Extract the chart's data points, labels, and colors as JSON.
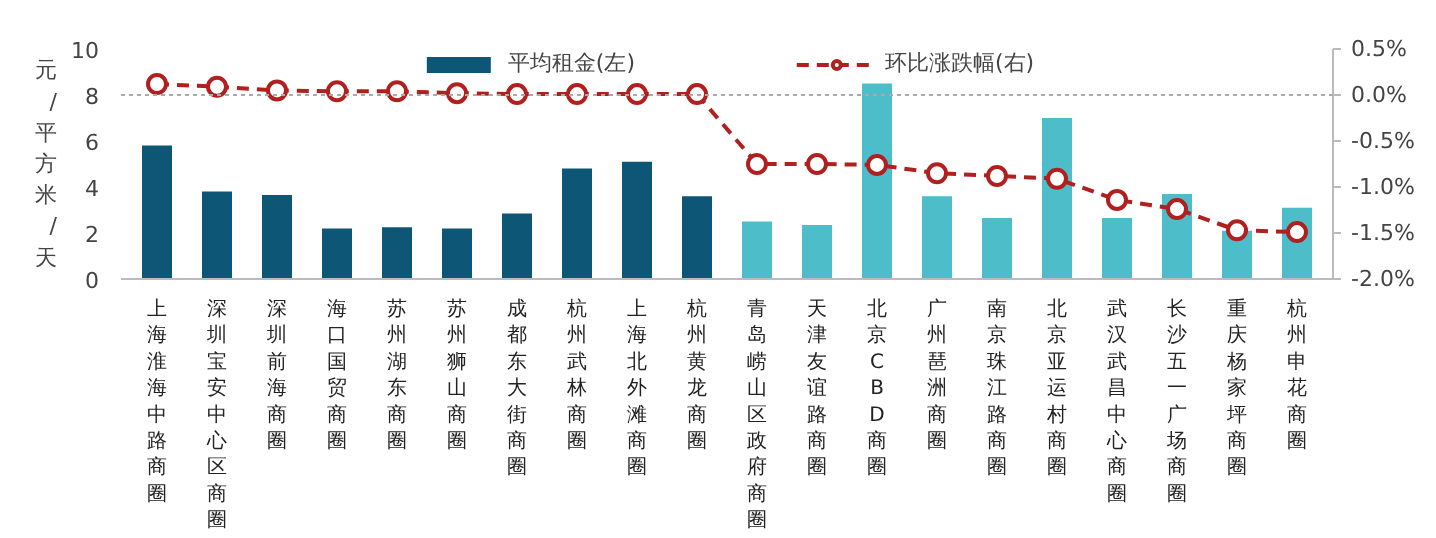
{
  "chart_data": {
    "type": "bar",
    "ylabel": "元/平方米/天",
    "categories": [
      "上海淮海中路商圈",
      "深圳宝安中心区商圈",
      "深圳前海商圈",
      "海口国贸商圈",
      "苏州湖东商圈",
      "苏州狮山商圈",
      "成都东大街商圈",
      "杭州武林商圈",
      "上海北外滩商圈",
      "杭州黄龙商圈",
      "青岛崂山区政府商圈",
      "天津友谊路商圈",
      "北京CBD商圈",
      "广州琶洲商圈",
      "南京珠江路商圈",
      "北京亚运村商圈",
      "武汉武昌中心商圈",
      "长沙五一广场商圈",
      "重庆杨家坪商圈",
      "杭州申花商圈"
    ],
    "series": [
      {
        "name": "平均租金(左)",
        "color": "#0e5675",
        "colors": [
          "#0e5675",
          "#0e5675",
          "#0e5675",
          "#0e5675",
          "#0e5675",
          "#0e5675",
          "#0e5675",
          "#0e5675",
          "#0e5675",
          "#0e5675",
          "#4dbdca",
          "#4dbdca",
          "#4dbdca",
          "#4dbdca",
          "#4dbdca",
          "#4dbdca",
          "#4dbdca",
          "#4dbdca",
          "#4dbdca",
          "#4dbdca"
        ],
        "values": [
          5.8,
          3.8,
          3.65,
          2.2,
          2.25,
          2.2,
          2.85,
          4.8,
          5.1,
          3.6,
          2.5,
          2.35,
          8.5,
          3.6,
          2.65,
          7.0,
          2.65,
          3.7,
          2.1,
          3.1
        ]
      },
      {
        "name": "环比涨跌幅(右)",
        "type": "line",
        "axis": "y2",
        "color": "#b0201f",
        "marker": "circle",
        "line_style": "dashed",
        "values": [
          0.12,
          0.09,
          0.05,
          0.04,
          0.04,
          0.02,
          0.01,
          0.01,
          0.01,
          0.01,
          -0.75,
          -0.75,
          -0.76,
          -0.85,
          -0.88,
          -0.91,
          -1.14,
          -1.24,
          -1.47,
          -1.49
        ]
      }
    ],
    "ylim": [
      0,
      10
    ],
    "yticks": [
      0,
      2,
      4,
      6,
      8,
      10
    ],
    "y2lim": [
      -2.0,
      0.5
    ],
    "y2ticks": [
      {
        "value": -2.0,
        "label": "-2.0%"
      },
      {
        "value": -1.5,
        "label": "-1.5%"
      },
      {
        "value": -1.0,
        "label": "-1.0%"
      },
      {
        "value": -0.5,
        "label": "-0.5%"
      },
      {
        "value": 0.0,
        "label": "0.0%"
      },
      {
        "value": 0.5,
        "label": "0.5%"
      }
    ],
    "ref_lines": [
      {
        "axis": "y2",
        "value": 0,
        "label": null,
        "color": "#aaaaaa",
        "line_style": "dotted"
      }
    ],
    "grid": false,
    "legend": "top"
  }
}
